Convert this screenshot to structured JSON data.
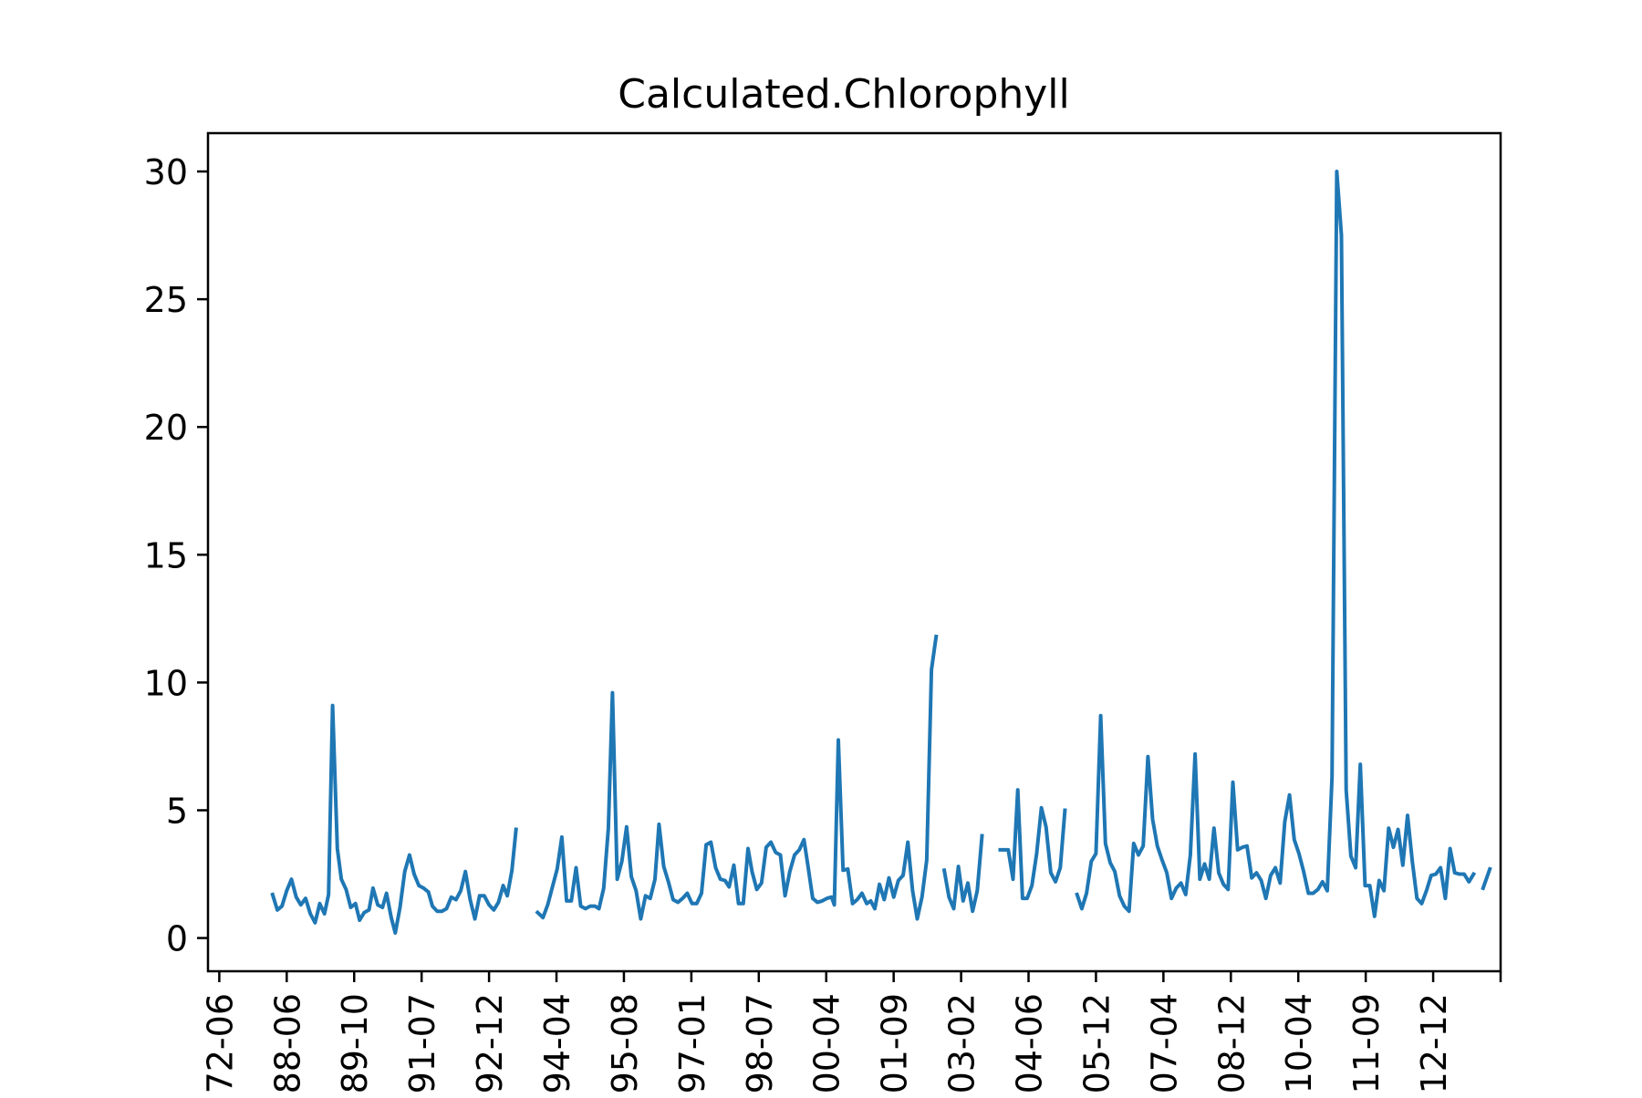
{
  "chart_data": {
    "type": "line",
    "title": "Calculated.Chlorophyll",
    "xlabel": "",
    "ylabel": "",
    "ylim": [
      -1.3,
      31.5
    ],
    "grid": false,
    "y_ticks": [
      0,
      5,
      10,
      15,
      20,
      25,
      30
    ],
    "x_ticks": [
      {
        "at": 0.0,
        "label": "72-06"
      },
      {
        "at": 1.0,
        "label": "88-06"
      },
      {
        "at": 2.0,
        "label": "89-10"
      },
      {
        "at": 3.0,
        "label": "91-07"
      },
      {
        "at": 4.0,
        "label": "92-12"
      },
      {
        "at": 5.0,
        "label": "94-04"
      },
      {
        "at": 6.0,
        "label": "95-08"
      },
      {
        "at": 7.0,
        "label": "97-01"
      },
      {
        "at": 8.0,
        "label": "98-07"
      },
      {
        "at": 9.0,
        "label": "00-04"
      },
      {
        "at": 10.0,
        "label": "01-09"
      },
      {
        "at": 11.0,
        "label": "03-02"
      },
      {
        "at": 12.0,
        "label": "04-06"
      },
      {
        "at": 13.0,
        "label": "05-12"
      },
      {
        "at": 14.0,
        "label": "07-04"
      },
      {
        "at": 15.0,
        "label": "08-12"
      },
      {
        "at": 16.0,
        "label": "10-04"
      },
      {
        "at": 17.0,
        "label": "11-09"
      },
      {
        "at": 18.0,
        "label": "12-12"
      },
      {
        "at": 19.0,
        "label": ""
      }
    ],
    "xlim": [
      -0.1,
      19.0
    ],
    "series": [
      {
        "color": "#1f77b4",
        "segments": [
          [
            [
              0.79,
              1.7
            ],
            [
              0.86,
              1.1
            ],
            [
              0.93,
              1.25
            ],
            [
              1.0,
              1.85
            ],
            [
              1.07,
              2.3
            ],
            [
              1.14,
              1.6
            ],
            [
              1.21,
              1.3
            ],
            [
              1.28,
              1.55
            ],
            [
              1.35,
              0.95
            ],
            [
              1.42,
              0.6
            ],
            [
              1.49,
              1.35
            ],
            [
              1.56,
              0.95
            ],
            [
              1.62,
              1.7
            ],
            [
              1.68,
              9.1
            ],
            [
              1.75,
              3.5
            ],
            [
              1.81,
              2.3
            ],
            [
              1.88,
              1.9
            ],
            [
              1.95,
              1.2
            ],
            [
              2.02,
              1.35
            ],
            [
              2.08,
              0.7
            ],
            [
              2.15,
              1.0
            ],
            [
              2.22,
              1.1
            ],
            [
              2.28,
              1.95
            ],
            [
              2.35,
              1.3
            ],
            [
              2.42,
              1.2
            ],
            [
              2.48,
              1.75
            ],
            [
              2.55,
              0.8
            ],
            [
              2.61,
              0.2
            ],
            [
              2.68,
              1.2
            ],
            [
              2.75,
              2.6
            ],
            [
              2.82,
              3.25
            ],
            [
              2.89,
              2.5
            ],
            [
              2.96,
              2.05
            ],
            [
              3.03,
              1.95
            ],
            [
              3.1,
              1.8
            ],
            [
              3.16,
              1.25
            ],
            [
              3.23,
              1.05
            ],
            [
              3.3,
              1.05
            ],
            [
              3.37,
              1.15
            ],
            [
              3.44,
              1.6
            ],
            [
              3.51,
              1.5
            ],
            [
              3.58,
              1.85
            ],
            [
              3.65,
              2.6
            ],
            [
              3.72,
              1.5
            ],
            [
              3.79,
              0.75
            ],
            [
              3.86,
              1.65
            ],
            [
              3.93,
              1.65
            ],
            [
              4.0,
              1.3
            ],
            [
              4.07,
              1.1
            ],
            [
              4.14,
              1.4
            ],
            [
              4.21,
              2.05
            ],
            [
              4.27,
              1.65
            ],
            [
              4.34,
              2.65
            ],
            [
              4.4,
              4.25
            ]
          ],
          [
            [
              4.72,
              1.0
            ],
            [
              4.8,
              0.8
            ],
            [
              4.87,
              1.3
            ],
            [
              4.94,
              2.0
            ],
            [
              5.01,
              2.7
            ],
            [
              5.08,
              3.95
            ],
            [
              5.15,
              1.45
            ],
            [
              5.22,
              1.45
            ],
            [
              5.29,
              2.75
            ],
            [
              5.36,
              1.25
            ],
            [
              5.43,
              1.15
            ],
            [
              5.5,
              1.25
            ],
            [
              5.57,
              1.25
            ],
            [
              5.63,
              1.15
            ],
            [
              5.7,
              1.95
            ],
            [
              5.77,
              4.3
            ],
            [
              5.83,
              9.6
            ],
            [
              5.9,
              2.3
            ],
            [
              5.97,
              3.0
            ],
            [
              6.04,
              4.35
            ],
            [
              6.11,
              2.4
            ],
            [
              6.18,
              1.85
            ],
            [
              6.25,
              0.75
            ],
            [
              6.32,
              1.65
            ],
            [
              6.39,
              1.55
            ],
            [
              6.46,
              2.3
            ],
            [
              6.52,
              4.45
            ],
            [
              6.59,
              2.8
            ],
            [
              6.66,
              2.2
            ],
            [
              6.73,
              1.5
            ],
            [
              6.8,
              1.4
            ],
            [
              6.87,
              1.55
            ],
            [
              6.94,
              1.75
            ],
            [
              7.01,
              1.35
            ],
            [
              7.08,
              1.35
            ],
            [
              7.15,
              1.75
            ],
            [
              7.22,
              3.65
            ],
            [
              7.29,
              3.75
            ],
            [
              7.36,
              2.75
            ],
            [
              7.43,
              2.3
            ],
            [
              7.5,
              2.25
            ],
            [
              7.56,
              2.0
            ],
            [
              7.63,
              2.85
            ],
            [
              7.7,
              1.35
            ],
            [
              7.77,
              1.35
            ],
            [
              7.84,
              3.5
            ],
            [
              7.9,
              2.6
            ],
            [
              7.97,
              1.9
            ],
            [
              8.04,
              2.15
            ],
            [
              8.11,
              3.55
            ],
            [
              8.18,
              3.75
            ],
            [
              8.25,
              3.35
            ],
            [
              8.32,
              3.25
            ],
            [
              8.39,
              1.65
            ],
            [
              8.46,
              2.6
            ],
            [
              8.53,
              3.25
            ],
            [
              8.6,
              3.45
            ],
            [
              8.67,
              3.85
            ],
            [
              8.73,
              2.8
            ],
            [
              8.8,
              1.55
            ],
            [
              8.87,
              1.4
            ],
            [
              8.94,
              1.45
            ],
            [
              9.01,
              1.55
            ],
            [
              9.08,
              1.6
            ],
            [
              9.12,
              1.3
            ],
            [
              9.18,
              7.75
            ],
            [
              9.25,
              2.65
            ],
            [
              9.32,
              2.7
            ],
            [
              9.39,
              1.35
            ],
            [
              9.46,
              1.5
            ],
            [
              9.53,
              1.75
            ],
            [
              9.6,
              1.35
            ],
            [
              9.66,
              1.45
            ],
            [
              9.72,
              1.15
            ],
            [
              9.79,
              2.1
            ],
            [
              9.86,
              1.5
            ],
            [
              9.93,
              2.35
            ],
            [
              10.0,
              1.6
            ],
            [
              10.07,
              2.25
            ],
            [
              10.14,
              2.45
            ],
            [
              10.21,
              3.75
            ],
            [
              10.28,
              1.85
            ],
            [
              10.35,
              0.75
            ],
            [
              10.42,
              1.6
            ],
            [
              10.49,
              3.05
            ],
            [
              10.56,
              10.5
            ],
            [
              10.63,
              11.8
            ]
          ],
          [
            [
              10.75,
              2.65
            ],
            [
              10.82,
              1.6
            ],
            [
              10.89,
              1.15
            ],
            [
              10.96,
              2.8
            ],
            [
              11.03,
              1.45
            ],
            [
              11.1,
              2.15
            ],
            [
              11.17,
              1.05
            ],
            [
              11.24,
              1.85
            ],
            [
              11.31,
              4.0
            ]
          ],
          [
            [
              11.58,
              3.45
            ],
            [
              11.7,
              3.45
            ],
            [
              11.77,
              2.3
            ],
            [
              11.84,
              5.8
            ],
            [
              11.91,
              1.55
            ],
            [
              11.98,
              1.55
            ],
            [
              12.05,
              2.05
            ],
            [
              12.12,
              3.3
            ],
            [
              12.19,
              5.1
            ],
            [
              12.26,
              4.35
            ],
            [
              12.33,
              2.55
            ],
            [
              12.4,
              2.2
            ],
            [
              12.47,
              2.75
            ],
            [
              12.54,
              5.0
            ]
          ],
          [
            [
              12.72,
              1.7
            ],
            [
              12.79,
              1.15
            ],
            [
              12.86,
              1.75
            ],
            [
              12.93,
              3.0
            ],
            [
              13.0,
              3.3
            ],
            [
              13.07,
              8.7
            ],
            [
              13.14,
              3.7
            ],
            [
              13.21,
              2.95
            ],
            [
              13.28,
              2.6
            ],
            [
              13.35,
              1.65
            ],
            [
              13.42,
              1.25
            ],
            [
              13.49,
              1.05
            ],
            [
              13.56,
              3.7
            ],
            [
              13.63,
              3.25
            ],
            [
              13.7,
              3.6
            ],
            [
              13.77,
              7.1
            ],
            [
              13.84,
              4.65
            ],
            [
              13.91,
              3.6
            ],
            [
              13.98,
              3.05
            ],
            [
              14.05,
              2.55
            ],
            [
              14.12,
              1.55
            ],
            [
              14.19,
              1.95
            ],
            [
              14.26,
              2.15
            ],
            [
              14.33,
              1.7
            ],
            [
              14.4,
              3.25
            ],
            [
              14.47,
              7.2
            ],
            [
              14.54,
              2.3
            ],
            [
              14.61,
              2.9
            ],
            [
              14.68,
              2.3
            ],
            [
              14.75,
              4.3
            ],
            [
              14.82,
              2.55
            ],
            [
              14.89,
              2.1
            ],
            [
              14.96,
              1.9
            ],
            [
              15.03,
              6.1
            ],
            [
              15.1,
              3.45
            ],
            [
              15.17,
              3.55
            ],
            [
              15.24,
              3.6
            ],
            [
              15.31,
              2.35
            ],
            [
              15.38,
              2.55
            ],
            [
              15.45,
              2.25
            ],
            [
              15.52,
              1.55
            ],
            [
              15.59,
              2.45
            ],
            [
              15.66,
              2.75
            ],
            [
              15.73,
              2.15
            ],
            [
              15.8,
              4.55
            ],
            [
              15.87,
              5.6
            ],
            [
              15.94,
              3.85
            ],
            [
              16.01,
              3.3
            ],
            [
              16.08,
              2.6
            ],
            [
              16.15,
              1.75
            ],
            [
              16.22,
              1.75
            ],
            [
              16.29,
              1.9
            ],
            [
              16.36,
              2.2
            ],
            [
              16.43,
              1.85
            ],
            [
              16.5,
              6.3
            ],
            [
              16.57,
              30.0
            ],
            [
              16.64,
              27.5
            ],
            [
              16.71,
              5.8
            ],
            [
              16.78,
              3.2
            ],
            [
              16.85,
              2.75
            ],
            [
              16.92,
              6.8
            ],
            [
              16.99,
              2.05
            ],
            [
              17.06,
              2.05
            ],
            [
              17.13,
              0.85
            ],
            [
              17.2,
              2.25
            ],
            [
              17.27,
              1.85
            ],
            [
              17.34,
              4.3
            ],
            [
              17.41,
              3.55
            ],
            [
              17.48,
              4.25
            ],
            [
              17.55,
              2.85
            ],
            [
              17.62,
              4.8
            ],
            [
              17.69,
              3.0
            ],
            [
              17.76,
              1.55
            ],
            [
              17.83,
              1.35
            ],
            [
              17.9,
              1.85
            ],
            [
              17.97,
              2.45
            ],
            [
              18.04,
              2.5
            ],
            [
              18.11,
              2.75
            ],
            [
              18.18,
              1.55
            ],
            [
              18.25,
              3.5
            ],
            [
              18.32,
              2.55
            ],
            [
              18.39,
              2.5
            ],
            [
              18.46,
              2.5
            ],
            [
              18.53,
              2.2
            ],
            [
              18.6,
              2.5
            ]
          ],
          [
            [
              18.74,
              1.95
            ],
            [
              18.84,
              2.7
            ]
          ]
        ]
      }
    ]
  }
}
